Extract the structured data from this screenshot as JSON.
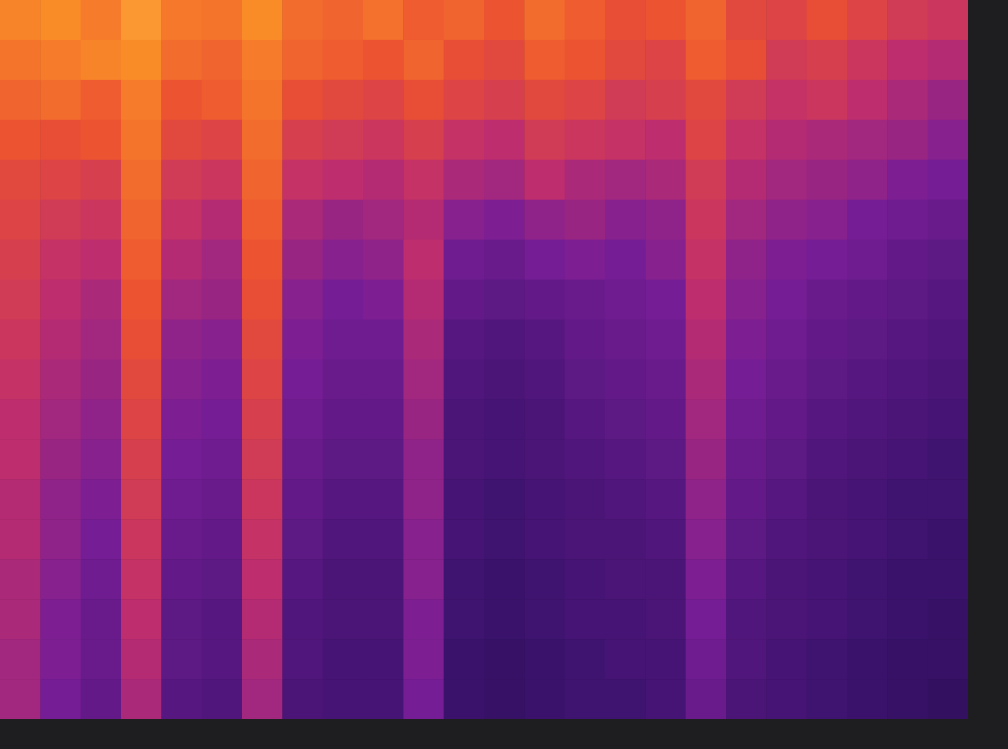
{
  "chart_data": {
    "type": "heatmap",
    "tick_labels": false,
    "grid": false,
    "zlim": [
      0,
      100
    ],
    "cells": [
      [
        88,
        90,
        86,
        92,
        85,
        84,
        90,
        82,
        80,
        83,
        78,
        80,
        76,
        82,
        78,
        74,
        76,
        80,
        72,
        70,
        74,
        70,
        66,
        64
      ],
      [
        84,
        86,
        88,
        90,
        82,
        80,
        86,
        80,
        78,
        76,
        80,
        74,
        72,
        78,
        76,
        72,
        70,
        78,
        74,
        66,
        68,
        64,
        60,
        58
      ],
      [
        80,
        82,
        78,
        86,
        76,
        78,
        84,
        74,
        72,
        70,
        74,
        70,
        68,
        72,
        70,
        66,
        68,
        72,
        66,
        62,
        64,
        60,
        56,
        52
      ],
      [
        76,
        74,
        76,
        84,
        72,
        70,
        82,
        68,
        66,
        64,
        68,
        62,
        60,
        66,
        64,
        62,
        60,
        70,
        62,
        58,
        56,
        54,
        52,
        48
      ],
      [
        72,
        70,
        68,
        82,
        66,
        64,
        80,
        62,
        60,
        58,
        62,
        56,
        54,
        60,
        56,
        54,
        56,
        66,
        58,
        54,
        52,
        50,
        46,
        44
      ],
      [
        70,
        66,
        64,
        80,
        62,
        58,
        78,
        56,
        52,
        54,
        58,
        48,
        46,
        50,
        52,
        48,
        50,
        64,
        54,
        50,
        48,
        44,
        42,
        40
      ],
      [
        68,
        62,
        60,
        78,
        58,
        54,
        76,
        52,
        48,
        50,
        60,
        42,
        40,
        44,
        46,
        44,
        48,
        62,
        50,
        46,
        44,
        42,
        38,
        36
      ],
      [
        66,
        60,
        56,
        76,
        54,
        52,
        74,
        48,
        44,
        46,
        58,
        38,
        36,
        38,
        40,
        42,
        44,
        60,
        48,
        44,
        40,
        38,
        36,
        34
      ],
      [
        64,
        58,
        54,
        74,
        50,
        48,
        72,
        46,
        42,
        42,
        56,
        34,
        32,
        34,
        38,
        40,
        42,
        58,
        46,
        42,
        38,
        36,
        34,
        32
      ],
      [
        62,
        56,
        52,
        72,
        48,
        46,
        70,
        44,
        40,
        40,
        54,
        32,
        30,
        32,
        36,
        38,
        40,
        56,
        44,
        40,
        36,
        34,
        32,
        30
      ],
      [
        60,
        54,
        50,
        70,
        46,
        44,
        68,
        42,
        38,
        38,
        52,
        30,
        28,
        30,
        34,
        36,
        38,
        54,
        42,
        38,
        34,
        32,
        30,
        28
      ],
      [
        60,
        52,
        48,
        68,
        44,
        42,
        66,
        40,
        36,
        36,
        50,
        30,
        28,
        30,
        32,
        34,
        36,
        52,
        40,
        36,
        32,
        30,
        28,
        26
      ],
      [
        58,
        50,
        46,
        66,
        42,
        40,
        64,
        38,
        34,
        34,
        50,
        28,
        26,
        28,
        30,
        32,
        34,
        50,
        38,
        34,
        30,
        28,
        26,
        26
      ],
      [
        58,
        50,
        44,
        64,
        40,
        38,
        62,
        36,
        32,
        32,
        48,
        28,
        26,
        28,
        30,
        30,
        32,
        48,
        36,
        32,
        30,
        28,
        26,
        24
      ],
      [
        56,
        48,
        42,
        62,
        38,
        36,
        60,
        34,
        30,
        30,
        48,
        26,
        24,
        26,
        28,
        30,
        30,
        46,
        34,
        30,
        28,
        26,
        24,
        24
      ],
      [
        56,
        46,
        40,
        60,
        36,
        34,
        58,
        32,
        30,
        30,
        46,
        26,
        24,
        26,
        28,
        28,
        30,
        44,
        32,
        30,
        28,
        26,
        24,
        22
      ],
      [
        54,
        46,
        40,
        58,
        36,
        34,
        56,
        32,
        28,
        28,
        46,
        24,
        22,
        24,
        26,
        28,
        28,
        42,
        32,
        28,
        26,
        24,
        22,
        22
      ],
      [
        54,
        44,
        38,
        56,
        34,
        32,
        54,
        30,
        28,
        28,
        44,
        24,
        22,
        24,
        26,
        26,
        28,
        40,
        30,
        28,
        26,
        24,
        22,
        20
      ]
    ]
  }
}
